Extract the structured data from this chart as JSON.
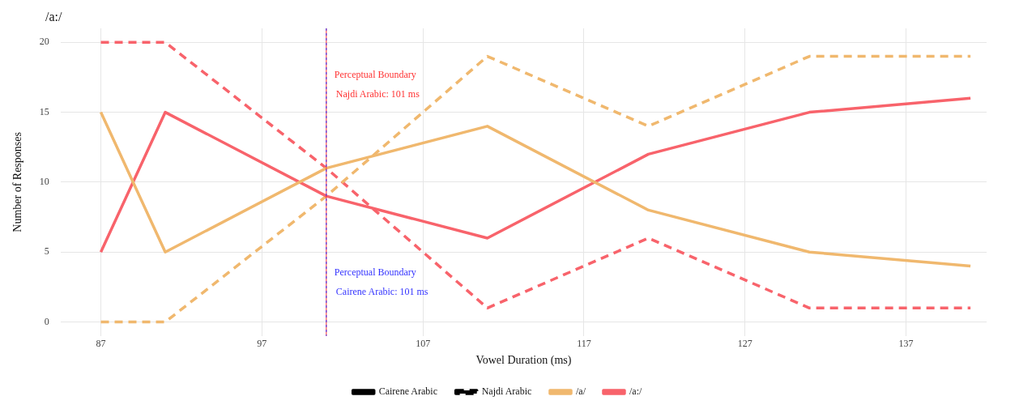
{
  "chart_data": {
    "type": "line",
    "title": "/a:/",
    "xlabel": "Vowel Duration (ms)",
    "ylabel": "Number of Responses",
    "x": [
      87,
      91,
      101,
      111,
      121,
      131,
      141
    ],
    "series": [
      {
        "name": "Cairene Arabic",
        "color": "#000000",
        "values": [
          null,
          null,
          null,
          null,
          null,
          null,
          null
        ],
        "line_style": "solid"
      },
      {
        "name": "Najdi Arabic",
        "color": "#000000",
        "values": [
          null,
          null,
          null,
          null,
          null,
          null,
          null
        ],
        "line_style": "dashed"
      },
      {
        "name": "/a/",
        "color": "#f0b86e",
        "values": [
          15,
          5,
          11,
          14,
          8,
          5,
          4
        ],
        "line_style": "solid"
      },
      {
        "name": "/a:/",
        "color": "#f8636b",
        "values": [
          5,
          15,
          9,
          6,
          12,
          15,
          16
        ],
        "line_style": "solid"
      },
      {
        "color": "#f0b86e",
        "values": [
          0,
          0,
          9,
          19,
          14,
          19,
          19
        ],
        "line_style": "dashed"
      },
      {
        "color": "#f8636b",
        "values": [
          20,
          20,
          11,
          1,
          6,
          1,
          1
        ],
        "line_style": "dashed"
      }
    ],
    "xlim": [
      84.5,
      142
    ],
    "xticks": [
      87,
      97,
      107,
      117,
      127,
      137
    ],
    "ylim": [
      -1,
      21
    ],
    "yticks": [
      0,
      5,
      10,
      15,
      20
    ],
    "ref_lines": [
      {
        "axis": "x",
        "value": 101,
        "label": "Perceptual Boundary\nNajdi Arabic: 101 ms",
        "color": "#ff3333",
        "line_style": "solid"
      },
      {
        "axis": "x",
        "value": 101,
        "label": "Perceptual Boundary\nCairene Arabic: 101 ms",
        "color": "#3333ff",
        "line_style": "dotted"
      }
    ],
    "grid": true,
    "legend": "bottom",
    "marker": "none"
  }
}
